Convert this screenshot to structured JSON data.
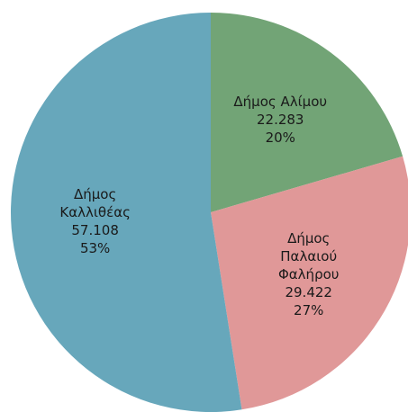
{
  "chart_data": {
    "type": "pie",
    "categories": [
      "Δήμος Αλίμου",
      "Δήμος Παλαιού Φαλήρου",
      "Δήμος Καλλιθέας"
    ],
    "values": [
      22283,
      29422,
      57108
    ],
    "value_labels": [
      "22.283",
      "29.422",
      "57.108"
    ],
    "percentages": [
      20,
      27,
      53
    ],
    "percentage_labels": [
      "20%",
      "27%",
      "53%"
    ],
    "colors": [
      "#72a476",
      "#e09898",
      "#67a7bb"
    ]
  }
}
